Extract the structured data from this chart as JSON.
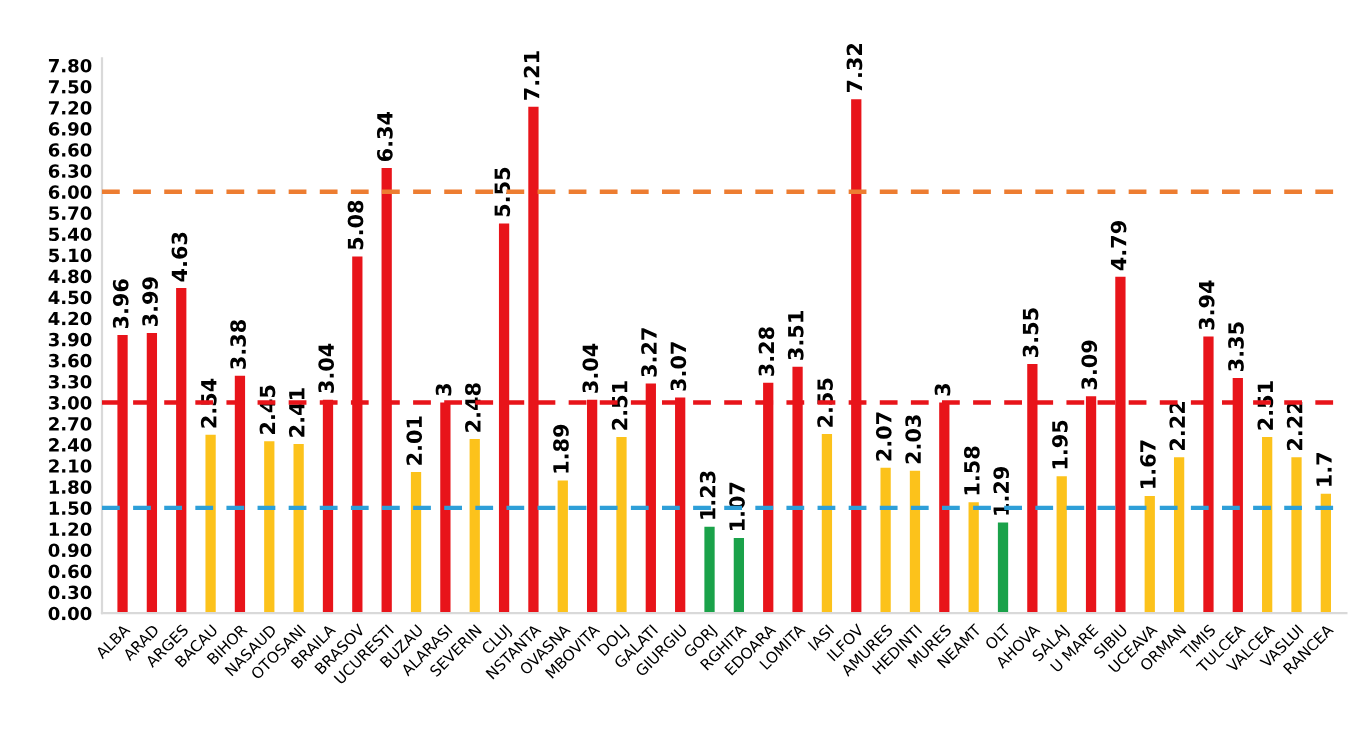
{
  "chart_data": {
    "type": "bar",
    "categories": [
      "ALBA",
      "ARAD",
      "ARGES",
      "BACAU",
      "BIHOR",
      "NASAUD",
      "OTOSANI",
      "BRAILA",
      "BRASOV",
      "UCURESTI",
      "BUZAU",
      "ALARASI",
      "SEVERIN",
      "CLUJ",
      "NSTANTA",
      "OVASNA",
      "MBOVITA",
      "DOLJ",
      "GALATI",
      "GIURGIU",
      "GORJ",
      "RGHITA",
      "EDOARA",
      "LOMITA",
      "IASI",
      "ILFOV",
      "AMURES",
      "HEDINTI",
      "MURES",
      "NEAMT",
      "OLT",
      "AHOVA",
      "SALAJ",
      "U MARE",
      "SIBIU",
      "UCEAVA",
      "ORMAN",
      "TIMIS",
      "TULCEA",
      "VALCEA",
      "VASLUI",
      "RANCEA"
    ],
    "values": [
      3.96,
      3.99,
      4.63,
      2.54,
      3.38,
      2.45,
      2.41,
      3.04,
      5.08,
      6.34,
      2.01,
      3,
      2.48,
      5.55,
      7.21,
      1.89,
      3.04,
      2.51,
      3.27,
      3.07,
      1.23,
      1.07,
      3.28,
      3.51,
      2.55,
      7.32,
      2.07,
      2.03,
      3,
      1.58,
      1.29,
      3.55,
      1.95,
      3.09,
      4.79,
      1.67,
      2.22,
      3.94,
      3.35,
      2.51,
      2.22,
      1.7
    ],
    "value_labels": [
      "3.96",
      "3.99",
      "4.63",
      "2.54",
      "3.38",
      "2.45",
      "2.41",
      "3.04",
      "5.08",
      "6.34",
      "2.01",
      "3",
      "2.48",
      "5.55",
      "7.21",
      "1.89",
      "3.04",
      "2.51",
      "3.27",
      "3.07",
      "1.23",
      "1.07",
      "3.28",
      "3.51",
      "2.55",
      "7.32",
      "2.07",
      "2.03",
      "3",
      "1.58",
      "1.29",
      "3.55",
      "1.95",
      "3.09",
      "4.79",
      "1.67",
      "2.22",
      "3.94",
      "3.35",
      "2.51",
      "2.22",
      "1.7"
    ],
    "colors": [
      "#e8141a",
      "#e8141a",
      "#e8141a",
      "#fcc21b",
      "#e8141a",
      "#fcc21b",
      "#fcc21b",
      "#e8141a",
      "#e8141a",
      "#e8141a",
      "#fcc21b",
      "#e8141a",
      "#fcc21b",
      "#e8141a",
      "#e8141a",
      "#fcc21b",
      "#e8141a",
      "#fcc21b",
      "#e8141a",
      "#e8141a",
      "#1aa24a",
      "#1aa24a",
      "#e8141a",
      "#e8141a",
      "#fcc21b",
      "#e8141a",
      "#fcc21b",
      "#fcc21b",
      "#e8141a",
      "#fcc21b",
      "#1aa24a",
      "#e8141a",
      "#fcc21b",
      "#e8141a",
      "#e8141a",
      "#fcc21b",
      "#fcc21b",
      "#e8141a",
      "#e8141a",
      "#fcc21b",
      "#fcc21b",
      "#fcc21b"
    ],
    "ylim": [
      0,
      7.9
    ],
    "yticks": [
      {
        "value": 0,
        "label": "0.00"
      },
      {
        "value": 0.3,
        "label": "0.30"
      },
      {
        "value": 0.6,
        "label": "0.60"
      },
      {
        "value": 0.9,
        "label": "0.90"
      },
      {
        "value": 1.2,
        "label": "1.20"
      },
      {
        "value": 1.5,
        "label": "1.50"
      },
      {
        "value": 1.8,
        "label": "1.80"
      },
      {
        "value": 2.1,
        "label": "2.10"
      },
      {
        "value": 2.4,
        "label": "2.40"
      },
      {
        "value": 2.7,
        "label": "2.70"
      },
      {
        "value": 3.0,
        "label": "3.00"
      },
      {
        "value": 3.3,
        "label": "3.30"
      },
      {
        "value": 3.6,
        "label": "3.60"
      },
      {
        "value": 3.9,
        "label": "3.90"
      },
      {
        "value": 4.2,
        "label": "4.20"
      },
      {
        "value": 4.5,
        "label": "4.50"
      },
      {
        "value": 4.8,
        "label": "4.80"
      },
      {
        "value": 5.1,
        "label": "5.10"
      },
      {
        "value": 5.4,
        "label": "5.40"
      },
      {
        "value": 5.7,
        "label": "5.70"
      },
      {
        "value": 6.0,
        "label": "6.00"
      },
      {
        "value": 6.3,
        "label": "6.30"
      },
      {
        "value": 6.6,
        "label": "6.60"
      },
      {
        "value": 6.9,
        "label": "6.90"
      },
      {
        "value": 7.2,
        "label": "7.20"
      },
      {
        "value": 7.5,
        "label": "7.50"
      },
      {
        "value": 7.8,
        "label": "7.80"
      }
    ],
    "ref_lines": [
      {
        "axis": "y",
        "value": 6.0,
        "color": "#ed7d31",
        "line_style": "dashed"
      },
      {
        "axis": "y",
        "value": 3.0,
        "color": "#e8141a",
        "line_style": "dashed"
      },
      {
        "axis": "y",
        "value": 1.5,
        "color": "#2e9fd8",
        "line_style": "dashed"
      }
    ],
    "grid": false
  }
}
